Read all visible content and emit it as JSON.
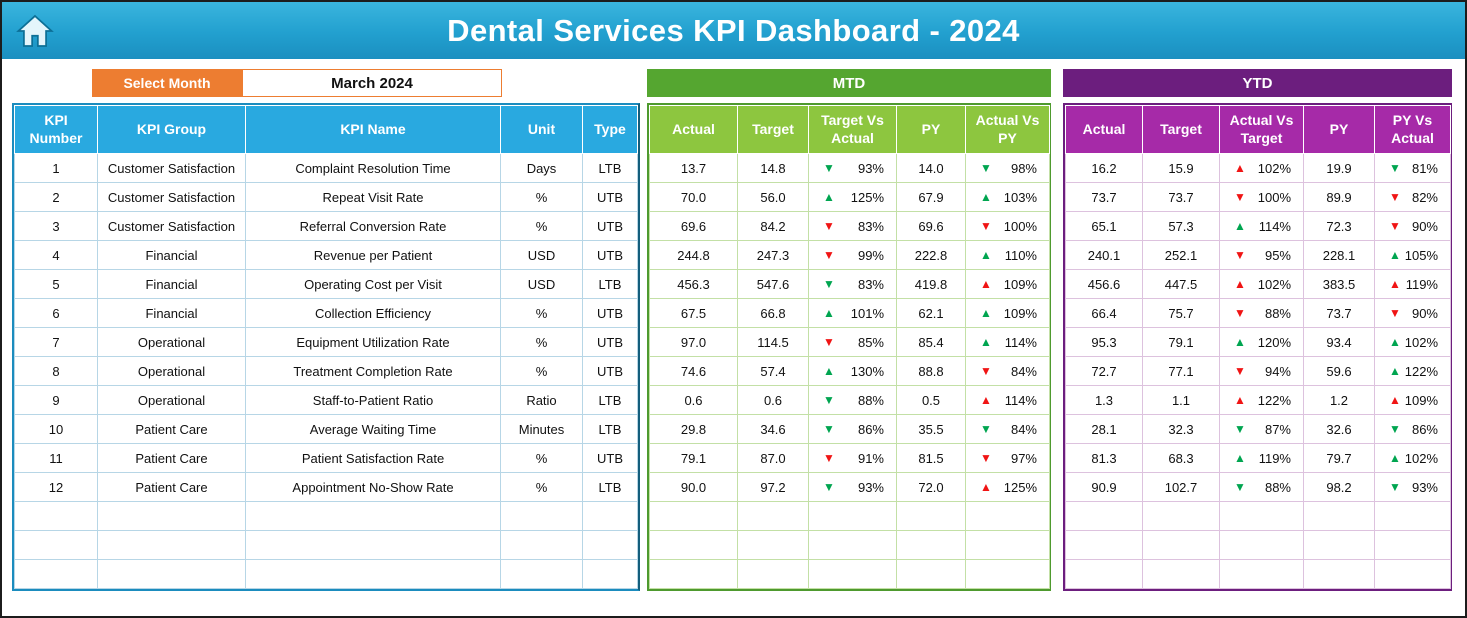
{
  "header": {
    "title": "Dental Services KPI Dashboard - 2024"
  },
  "icons": {
    "home": "house",
    "up_arrow": "▲",
    "down_arrow": "▼"
  },
  "colors": {
    "green": "#00A550",
    "red": "#F01414",
    "accent_blue": "#29A9E0",
    "accent_orange": "#ED7D31",
    "mtd_band_green": "#55A630",
    "mtd_header_green": "#8DC63F",
    "ytd_band_purple": "#6C1E7E",
    "ytd_header_purple": "#A62AA8"
  },
  "controls": {
    "select_month_label": "Select Month",
    "selected_month": "March 2024"
  },
  "left_table": {
    "headers": [
      "KPI Number",
      "KPI Group",
      "KPI Name",
      "Unit",
      "Type"
    ]
  },
  "mtd_table": {
    "band": "MTD",
    "headers": [
      "Actual",
      "Target",
      "Target Vs Actual",
      "PY",
      "Actual Vs PY"
    ]
  },
  "ytd_table": {
    "band": "YTD",
    "headers": [
      "Actual",
      "Target",
      "Actual Vs Target",
      "PY",
      "PY Vs Actual"
    ]
  },
  "empty_rows": 3,
  "rows": [
    {
      "number": "1",
      "group": "Customer Satisfaction",
      "name": "Complaint Resolution Time",
      "unit": "Days",
      "type": "LTB",
      "mtd": {
        "actual": "13.7",
        "target": "14.8",
        "target_vs_actual": {
          "dir": "down",
          "color": "green",
          "value": "93%"
        },
        "py": "14.0",
        "actual_vs_py": {
          "dir": "down",
          "color": "green",
          "value": "98%"
        }
      },
      "ytd": {
        "actual": "16.2",
        "target": "15.9",
        "actual_vs_target": {
          "dir": "up",
          "color": "red",
          "value": "102%"
        },
        "py": "19.9",
        "py_vs_actual": {
          "dir": "down",
          "color": "green",
          "value": "81%"
        }
      }
    },
    {
      "number": "2",
      "group": "Customer Satisfaction",
      "name": "Repeat Visit Rate",
      "unit": "%",
      "type": "UTB",
      "mtd": {
        "actual": "70.0",
        "target": "56.0",
        "target_vs_actual": {
          "dir": "up",
          "color": "green",
          "value": "125%"
        },
        "py": "67.9",
        "actual_vs_py": {
          "dir": "up",
          "color": "green",
          "value": "103%"
        }
      },
      "ytd": {
        "actual": "73.7",
        "target": "73.7",
        "actual_vs_target": {
          "dir": "down",
          "color": "red",
          "value": "100%"
        },
        "py": "89.9",
        "py_vs_actual": {
          "dir": "down",
          "color": "red",
          "value": "82%"
        }
      }
    },
    {
      "number": "3",
      "group": "Customer Satisfaction",
      "name": "Referral Conversion Rate",
      "unit": "%",
      "type": "UTB",
      "mtd": {
        "actual": "69.6",
        "target": "84.2",
        "target_vs_actual": {
          "dir": "down",
          "color": "red",
          "value": "83%"
        },
        "py": "69.6",
        "actual_vs_py": {
          "dir": "down",
          "color": "red",
          "value": "100%"
        }
      },
      "ytd": {
        "actual": "65.1",
        "target": "57.3",
        "actual_vs_target": {
          "dir": "up",
          "color": "green",
          "value": "114%"
        },
        "py": "72.3",
        "py_vs_actual": {
          "dir": "down",
          "color": "red",
          "value": "90%"
        }
      }
    },
    {
      "number": "4",
      "group": "Financial",
      "name": "Revenue per Patient",
      "unit": "USD",
      "type": "UTB",
      "mtd": {
        "actual": "244.8",
        "target": "247.3",
        "target_vs_actual": {
          "dir": "down",
          "color": "red",
          "value": "99%"
        },
        "py": "222.8",
        "actual_vs_py": {
          "dir": "up",
          "color": "green",
          "value": "110%"
        }
      },
      "ytd": {
        "actual": "240.1",
        "target": "252.1",
        "actual_vs_target": {
          "dir": "down",
          "color": "red",
          "value": "95%"
        },
        "py": "228.1",
        "py_vs_actual": {
          "dir": "up",
          "color": "green",
          "value": "105%"
        }
      }
    },
    {
      "number": "5",
      "group": "Financial",
      "name": "Operating Cost per Visit",
      "unit": "USD",
      "type": "LTB",
      "mtd": {
        "actual": "456.3",
        "target": "547.6",
        "target_vs_actual": {
          "dir": "down",
          "color": "green",
          "value": "83%"
        },
        "py": "419.8",
        "actual_vs_py": {
          "dir": "up",
          "color": "red",
          "value": "109%"
        }
      },
      "ytd": {
        "actual": "456.6",
        "target": "447.5",
        "actual_vs_target": {
          "dir": "up",
          "color": "red",
          "value": "102%"
        },
        "py": "383.5",
        "py_vs_actual": {
          "dir": "up",
          "color": "red",
          "value": "119%"
        }
      }
    },
    {
      "number": "6",
      "group": "Financial",
      "name": "Collection Efficiency",
      "unit": "%",
      "type": "UTB",
      "mtd": {
        "actual": "67.5",
        "target": "66.8",
        "target_vs_actual": {
          "dir": "up",
          "color": "green",
          "value": "101%"
        },
        "py": "62.1",
        "actual_vs_py": {
          "dir": "up",
          "color": "green",
          "value": "109%"
        }
      },
      "ytd": {
        "actual": "66.4",
        "target": "75.7",
        "actual_vs_target": {
          "dir": "down",
          "color": "red",
          "value": "88%"
        },
        "py": "73.7",
        "py_vs_actual": {
          "dir": "down",
          "color": "red",
          "value": "90%"
        }
      }
    },
    {
      "number": "7",
      "group": "Operational",
      "name": "Equipment Utilization Rate",
      "unit": "%",
      "type": "UTB",
      "mtd": {
        "actual": "97.0",
        "target": "114.5",
        "target_vs_actual": {
          "dir": "down",
          "color": "red",
          "value": "85%"
        },
        "py": "85.4",
        "actual_vs_py": {
          "dir": "up",
          "color": "green",
          "value": "114%"
        }
      },
      "ytd": {
        "actual": "95.3",
        "target": "79.1",
        "actual_vs_target": {
          "dir": "up",
          "color": "green",
          "value": "120%"
        },
        "py": "93.4",
        "py_vs_actual": {
          "dir": "up",
          "color": "green",
          "value": "102%"
        }
      }
    },
    {
      "number": "8",
      "group": "Operational",
      "name": "Treatment Completion Rate",
      "unit": "%",
      "type": "UTB",
      "mtd": {
        "actual": "74.6",
        "target": "57.4",
        "target_vs_actual": {
          "dir": "up",
          "color": "green",
          "value": "130%"
        },
        "py": "88.8",
        "actual_vs_py": {
          "dir": "down",
          "color": "red",
          "value": "84%"
        }
      },
      "ytd": {
        "actual": "72.7",
        "target": "77.1",
        "actual_vs_target": {
          "dir": "down",
          "color": "red",
          "value": "94%"
        },
        "py": "59.6",
        "py_vs_actual": {
          "dir": "up",
          "color": "green",
          "value": "122%"
        }
      }
    },
    {
      "number": "9",
      "group": "Operational",
      "name": "Staff-to-Patient Ratio",
      "unit": "Ratio",
      "type": "LTB",
      "mtd": {
        "actual": "0.6",
        "target": "0.6",
        "target_vs_actual": {
          "dir": "down",
          "color": "green",
          "value": "88%"
        },
        "py": "0.5",
        "actual_vs_py": {
          "dir": "up",
          "color": "red",
          "value": "114%"
        }
      },
      "ytd": {
        "actual": "1.3",
        "target": "1.1",
        "actual_vs_target": {
          "dir": "up",
          "color": "red",
          "value": "122%"
        },
        "py": "1.2",
        "py_vs_actual": {
          "dir": "up",
          "color": "red",
          "value": "109%"
        }
      }
    },
    {
      "number": "10",
      "group": "Patient Care",
      "name": "Average Waiting Time",
      "unit": "Minutes",
      "type": "LTB",
      "mtd": {
        "actual": "29.8",
        "target": "34.6",
        "target_vs_actual": {
          "dir": "down",
          "color": "green",
          "value": "86%"
        },
        "py": "35.5",
        "actual_vs_py": {
          "dir": "down",
          "color": "green",
          "value": "84%"
        }
      },
      "ytd": {
        "actual": "28.1",
        "target": "32.3",
        "actual_vs_target": {
          "dir": "down",
          "color": "green",
          "value": "87%"
        },
        "py": "32.6",
        "py_vs_actual": {
          "dir": "down",
          "color": "green",
          "value": "86%"
        }
      }
    },
    {
      "number": "11",
      "group": "Patient Care",
      "name": "Patient Satisfaction Rate",
      "unit": "%",
      "type": "UTB",
      "mtd": {
        "actual": "79.1",
        "target": "87.0",
        "target_vs_actual": {
          "dir": "down",
          "color": "red",
          "value": "91%"
        },
        "py": "81.5",
        "actual_vs_py": {
          "dir": "down",
          "color": "red",
          "value": "97%"
        }
      },
      "ytd": {
        "actual": "81.3",
        "target": "68.3",
        "actual_vs_target": {
          "dir": "up",
          "color": "green",
          "value": "119%"
        },
        "py": "79.7",
        "py_vs_actual": {
          "dir": "up",
          "color": "green",
          "value": "102%"
        }
      }
    },
    {
      "number": "12",
      "group": "Patient Care",
      "name": "Appointment No-Show Rate",
      "unit": "%",
      "type": "LTB",
      "mtd": {
        "actual": "90.0",
        "target": "97.2",
        "target_vs_actual": {
          "dir": "down",
          "color": "green",
          "value": "93%"
        },
        "py": "72.0",
        "actual_vs_py": {
          "dir": "up",
          "color": "red",
          "value": "125%"
        }
      },
      "ytd": {
        "actual": "90.9",
        "target": "102.7",
        "actual_vs_target": {
          "dir": "down",
          "color": "green",
          "value": "88%"
        },
        "py": "98.2",
        "py_vs_actual": {
          "dir": "down",
          "color": "green",
          "value": "93%"
        }
      }
    }
  ]
}
